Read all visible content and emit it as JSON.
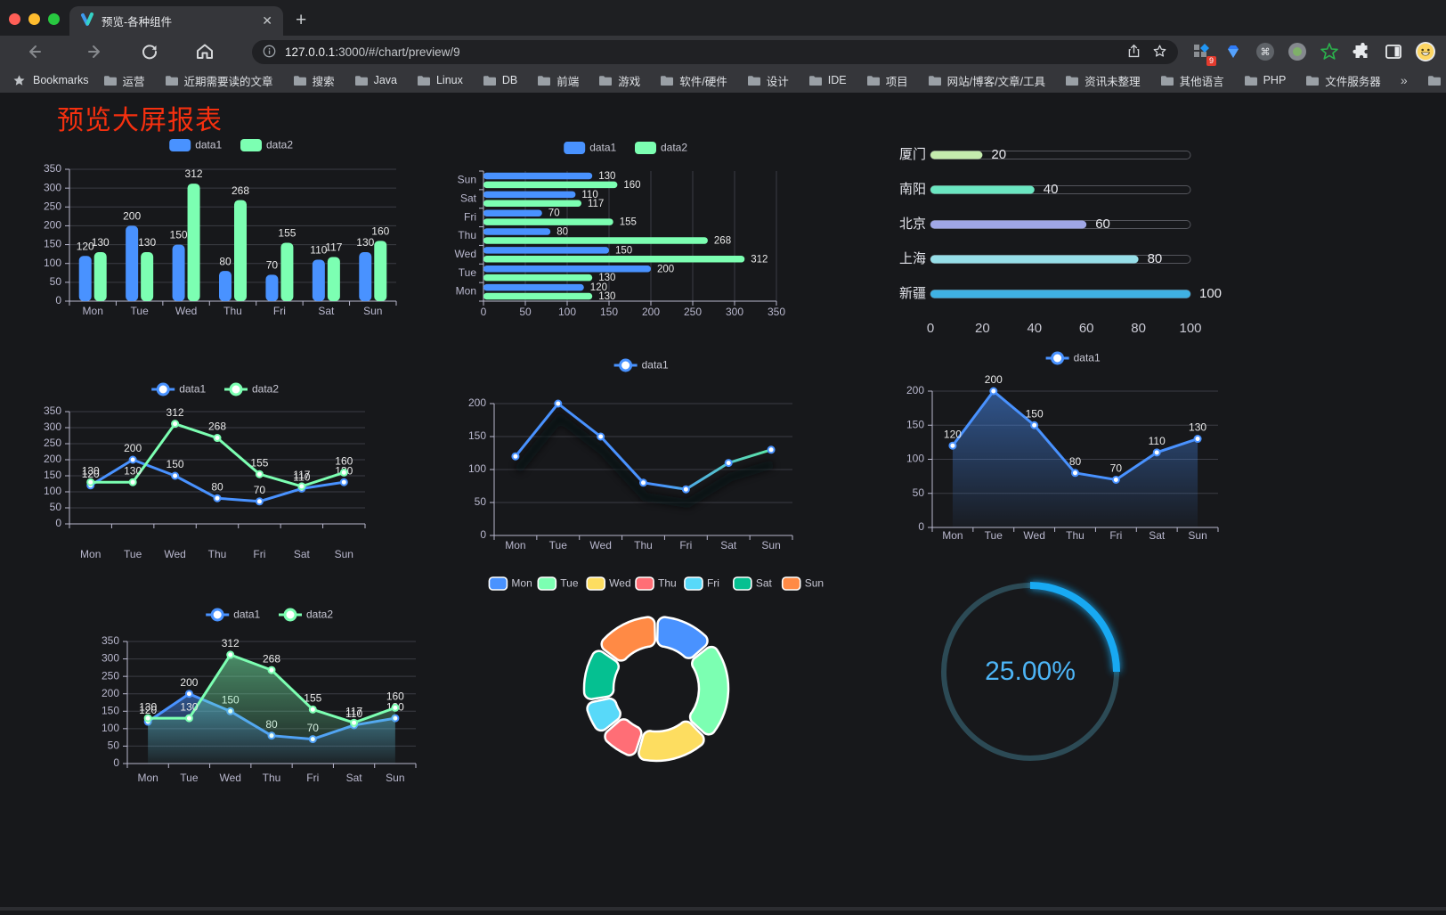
{
  "browser": {
    "tab": {
      "title": "预览-各种组件",
      "close_glyph": "✕",
      "new_tab_glyph": "+"
    },
    "url": {
      "host": "127.0.0.1",
      "rest": ":3000/#/chart/preview/9"
    },
    "extension_badge": "9",
    "bookmarks_bar": {
      "root_label": "Bookmarks",
      "folders": [
        "运营",
        "近期需要读的文章",
        "搜索",
        "Java",
        "Linux",
        "DB",
        "前端",
        "游戏",
        "软件/硬件",
        "设计",
        "IDE",
        "项目",
        "网站/博客/文章/工具",
        "资讯未整理",
        "其他语言",
        "PHP",
        "文件服务器"
      ],
      "overflow_glyph": "»",
      "other_bookmarks": "其他书签"
    }
  },
  "page": {
    "title": "预览大屏报表",
    "title_color": "#f5300f",
    "background": "#17181b"
  },
  "palette": {
    "blue": "#4992ff",
    "green": "#7cffb2",
    "yellow": "#fddd60",
    "red": "#ff6e76",
    "lightblue": "#58d9f9",
    "teal": "#05c091",
    "orange": "#ff8a45",
    "axis_label": "#b9b8ce",
    "grid": "#3b3c44",
    "value_label": "#e8e8e8"
  },
  "chart_data": [
    {
      "id": "c1",
      "type": "bar",
      "categories": [
        "Mon",
        "Tue",
        "Wed",
        "Thu",
        "Fri",
        "Sat",
        "Sun"
      ],
      "series": [
        {
          "name": "data1",
          "color": "#4992ff",
          "values": [
            120,
            200,
            150,
            80,
            70,
            110,
            130
          ]
        },
        {
          "name": "data2",
          "color": "#7cffb2",
          "values": [
            130,
            130,
            312,
            268,
            155,
            117,
            160
          ]
        }
      ],
      "y": {
        "min": 0,
        "max": 350,
        "step": 50
      },
      "legend": true,
      "value_labels": true
    },
    {
      "id": "c2",
      "type": "hbar",
      "categories": [
        "Mon",
        "Tue",
        "Wed",
        "Thu",
        "Fri",
        "Sat",
        "Sun"
      ],
      "series": [
        {
          "name": "data1",
          "color": "#4992ff",
          "values": [
            120,
            200,
            150,
            80,
            70,
            110,
            130
          ]
        },
        {
          "name": "data2",
          "color": "#7cffb2",
          "values": [
            130,
            130,
            312,
            268,
            155,
            117,
            160
          ]
        }
      ],
      "x": {
        "min": 0,
        "max": 350,
        "step": 50
      },
      "legend": true,
      "value_labels": true
    },
    {
      "id": "c3",
      "type": "progress",
      "max": 100,
      "axis_ticks": [
        0,
        20,
        40,
        60,
        80,
        100
      ],
      "items": [
        {
          "label": "厦门",
          "value": 20,
          "color": "#c4ebad"
        },
        {
          "label": "南阳",
          "value": 40,
          "color": "#6be6c1"
        },
        {
          "label": "北京",
          "value": 60,
          "color": "#a0a7e6"
        },
        {
          "label": "上海",
          "value": 80,
          "color": "#96dee8"
        },
        {
          "label": "新疆",
          "value": 100,
          "color": "#3fb1e3"
        }
      ]
    },
    {
      "id": "c4",
      "type": "line",
      "categories": [
        "Mon",
        "Tue",
        "Wed",
        "Thu",
        "Fri",
        "Sat",
        "Sun"
      ],
      "series": [
        {
          "name": "data1",
          "color": "#4992ff",
          "values": [
            120,
            200,
            150,
            80,
            70,
            110,
            130
          ]
        },
        {
          "name": "data2",
          "color": "#7cffb2",
          "values": [
            130,
            130,
            312,
            268,
            155,
            117,
            160
          ]
        }
      ],
      "y": {
        "min": 0,
        "max": 350,
        "step": 50
      },
      "legend": true,
      "value_labels": true
    },
    {
      "id": "c5",
      "type": "line",
      "categories": [
        "Mon",
        "Tue",
        "Wed",
        "Thu",
        "Fri",
        "Sat",
        "Sun"
      ],
      "series": [
        {
          "name": "data1",
          "gradient": [
            "#4992ff",
            "#5ce8a5"
          ],
          "marker": "#4992ff",
          "values": [
            120,
            200,
            150,
            80,
            70,
            110,
            130
          ]
        }
      ],
      "y": {
        "min": 0,
        "max": 200,
        "step": 50
      },
      "legend": true,
      "value_labels": false,
      "shadow": true
    },
    {
      "id": "c6",
      "type": "line",
      "categories": [
        "Mon",
        "Tue",
        "Wed",
        "Thu",
        "Fri",
        "Sat",
        "Sun"
      ],
      "series": [
        {
          "name": "data1",
          "color": "#4992ff",
          "area": true,
          "values": [
            120,
            200,
            150,
            80,
            70,
            110,
            130
          ]
        }
      ],
      "y": {
        "min": 0,
        "max": 200,
        "step": 50
      },
      "legend": true,
      "value_labels": true
    },
    {
      "id": "c7",
      "type": "line",
      "categories": [
        "Mon",
        "Tue",
        "Wed",
        "Thu",
        "Fri",
        "Sat",
        "Sun"
      ],
      "series": [
        {
          "name": "data1",
          "color": "#4992ff",
          "area": true,
          "values": [
            120,
            200,
            150,
            80,
            70,
            110,
            130
          ]
        },
        {
          "name": "data2",
          "color": "#7cffb2",
          "area": true,
          "values": [
            130,
            130,
            312,
            268,
            155,
            117,
            160
          ]
        }
      ],
      "y": {
        "min": 0,
        "max": 350,
        "step": 50
      },
      "legend": true,
      "value_labels": true
    },
    {
      "id": "c8",
      "type": "pie",
      "items": [
        {
          "label": "Mon",
          "value": 120,
          "color": "#4992ff"
        },
        {
          "label": "Tue",
          "value": 200,
          "color": "#7cffb2"
        },
        {
          "label": "Wed",
          "value": 150,
          "color": "#fddd60"
        },
        {
          "label": "Thu",
          "value": 80,
          "color": "#ff6e76"
        },
        {
          "label": "Fri",
          "value": 70,
          "color": "#58d9f9"
        },
        {
          "label": "Sat",
          "value": 110,
          "color": "#05c091"
        },
        {
          "label": "Sun",
          "value": 130,
          "color": "#ff8a45"
        }
      ]
    },
    {
      "id": "c9",
      "type": "gauge",
      "value": 25,
      "text": "25.00%",
      "color": "#18a9f2",
      "track": "#2c4a55",
      "text_color": "#4db5f7"
    }
  ]
}
